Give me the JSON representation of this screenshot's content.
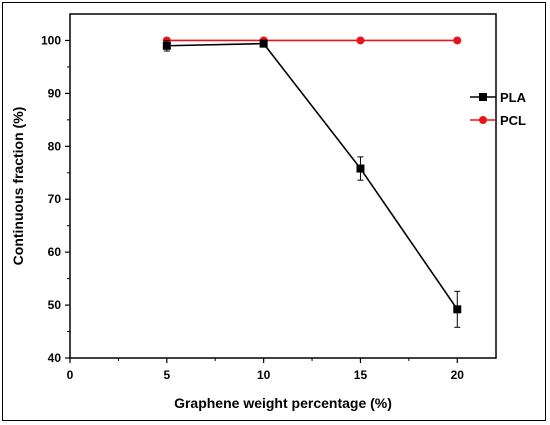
{
  "chart_data": {
    "type": "line",
    "xlabel": "Graphene weight percentage (%)",
    "ylabel": "Continuous fraction (%)",
    "xlim": [
      0,
      22
    ],
    "ylim": [
      40,
      105
    ],
    "xticks": [
      0,
      5,
      10,
      15,
      20
    ],
    "yticks": [
      40,
      50,
      60,
      70,
      80,
      90,
      100
    ],
    "legend_position": "right-middle",
    "series": [
      {
        "name": "PLA",
        "color": "#000000",
        "marker": "square",
        "x": [
          5,
          10,
          15,
          20
        ],
        "y": [
          99.0,
          99.4,
          75.8,
          49.2
        ],
        "error": [
          1.0,
          0.3,
          2.2,
          3.4
        ]
      },
      {
        "name": "PCL",
        "color": "#e8141b",
        "marker": "circle",
        "x": [
          5,
          10,
          15,
          20
        ],
        "y": [
          100,
          100,
          100,
          100
        ],
        "error": [
          0,
          0,
          0,
          0
        ]
      }
    ]
  }
}
